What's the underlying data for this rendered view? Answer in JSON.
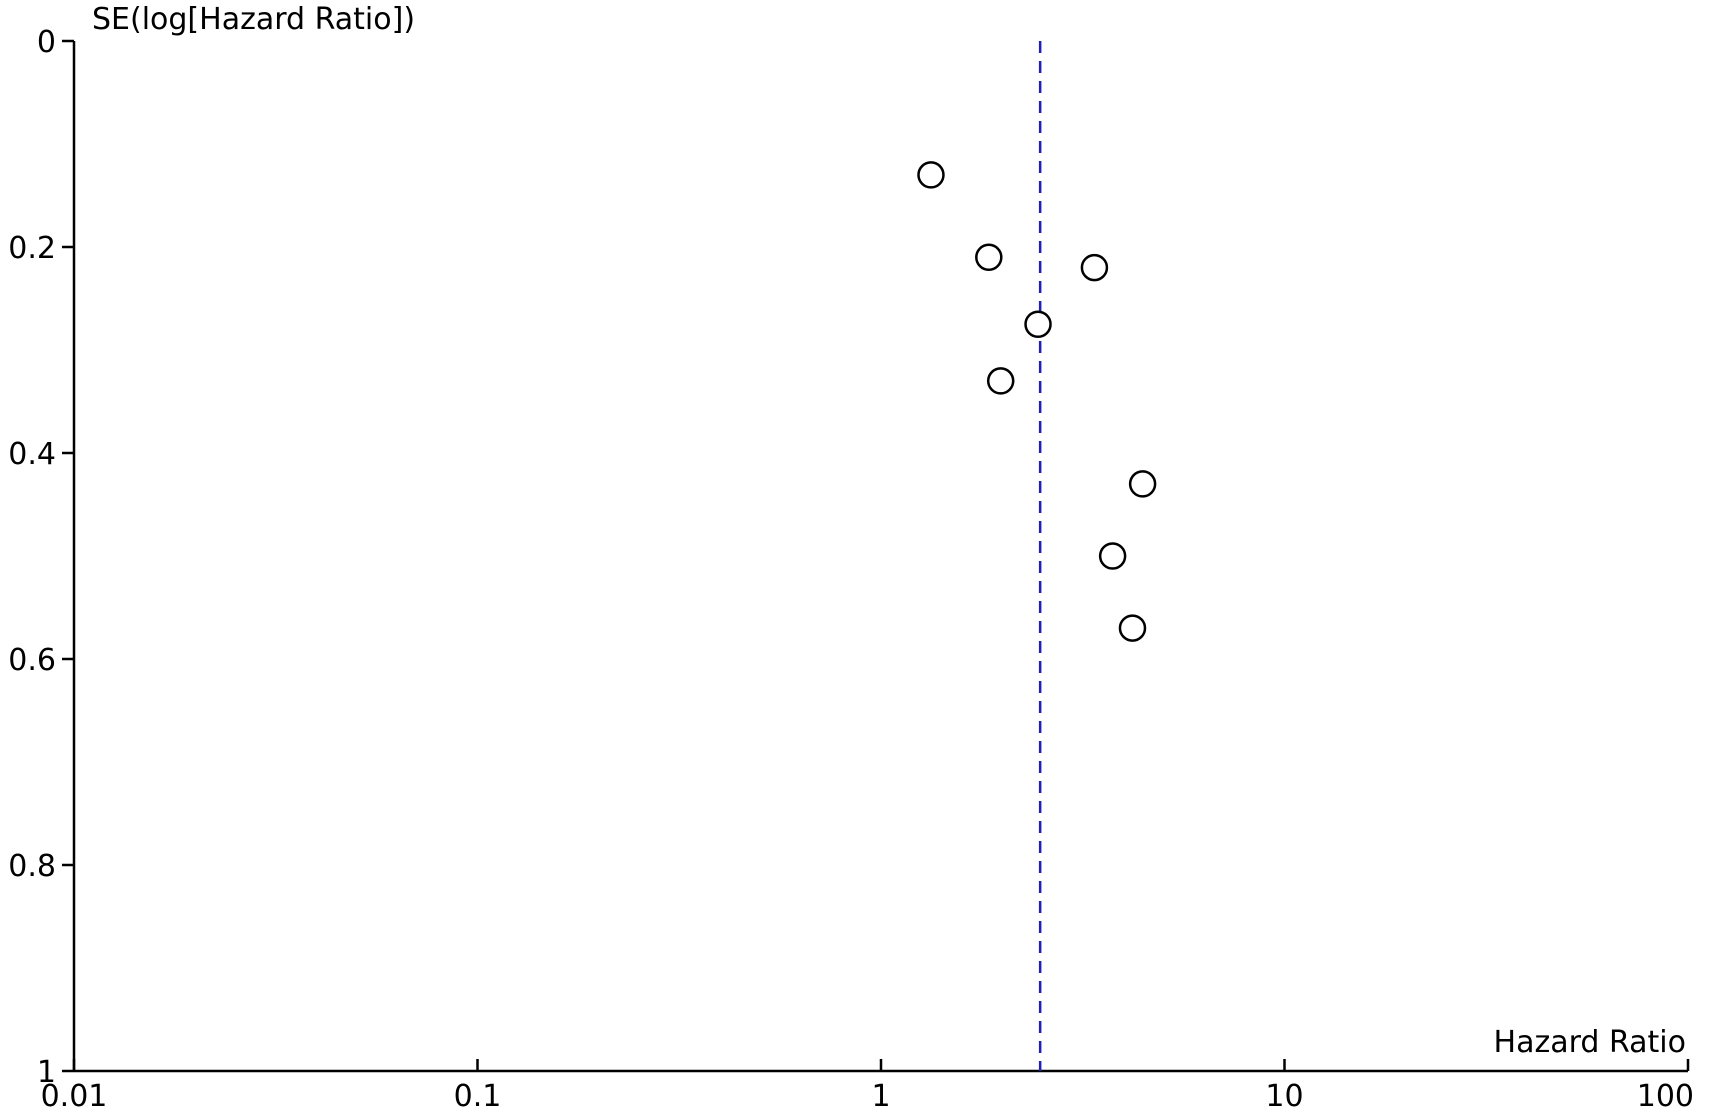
{
  "chart_data": {
    "type": "scatter",
    "subtype": "funnel-plot",
    "xlabel": "Hazard Ratio",
    "ylabel": "SE(log[Hazard Ratio])",
    "x_scale": "log",
    "xlim": [
      0.01,
      100
    ],
    "ylim": [
      0,
      1
    ],
    "y_inverted": true,
    "x_ticks": [
      "0.01",
      "0.1",
      "1",
      "10",
      "100"
    ],
    "y_ticks": [
      "0",
      "0.2",
      "0.4",
      "0.6",
      "0.8",
      "1"
    ],
    "grid": false,
    "legend": "none",
    "points": [
      {
        "hr": 1.33,
        "se": 0.13
      },
      {
        "hr": 1.85,
        "se": 0.21
      },
      {
        "hr": 3.38,
        "se": 0.22
      },
      {
        "hr": 2.45,
        "se": 0.275
      },
      {
        "hr": 1.98,
        "se": 0.33
      },
      {
        "hr": 4.45,
        "se": 0.43
      },
      {
        "hr": 3.75,
        "se": 0.5
      },
      {
        "hr": 4.2,
        "se": 0.57
      }
    ],
    "reference_line": {
      "hr": 2.48,
      "style": "dashed"
    },
    "colors": {
      "axis": "#000000",
      "marker": "#000000",
      "reference_line": "#1f1fb5"
    }
  }
}
